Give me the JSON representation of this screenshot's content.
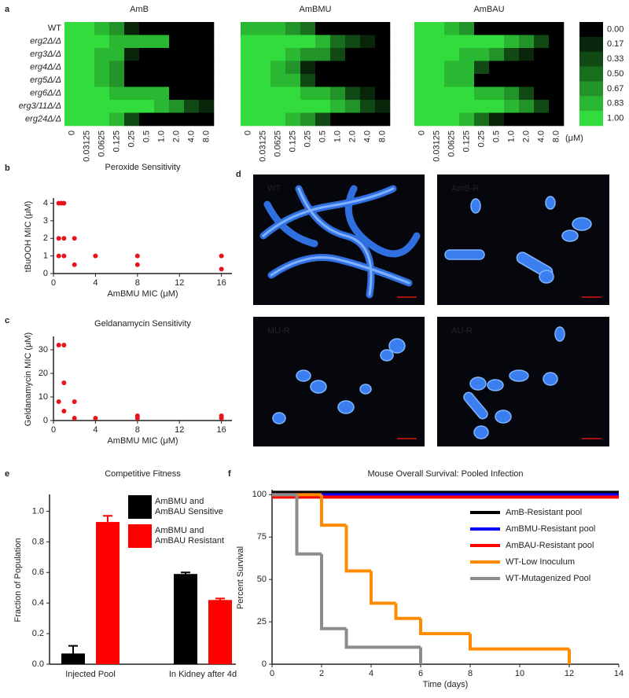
{
  "chart_data": [
    {
      "type": "heatmap",
      "panel": "a",
      "title": "AmB",
      "color": "#32dc3c",
      "rows": [
        "WT",
        "erg2Δ/Δ",
        "erg3Δ/Δ",
        "erg4Δ/Δ",
        "erg5Δ/Δ",
        "erg6Δ/Δ",
        "erg3/11Δ/Δ",
        "erg24Δ/Δ"
      ],
      "categories": [
        "0",
        "0.03125",
        "0.0625",
        "0.125",
        "0.25",
        "0.5",
        "1.0",
        "2.0",
        "4.0",
        "8.0"
      ],
      "values": [
        [
          1,
          1,
          0.83,
          0.67,
          0.17,
          0,
          0,
          0,
          0,
          0
        ],
        [
          1,
          1,
          1,
          0.83,
          0.83,
          0.83,
          0.83,
          0,
          0,
          0
        ],
        [
          1,
          1,
          0.83,
          0.83,
          0.17,
          0,
          0,
          0,
          0,
          0
        ],
        [
          1,
          1,
          0.83,
          0.67,
          0,
          0,
          0,
          0,
          0,
          0
        ],
        [
          1,
          1,
          0.83,
          0.67,
          0,
          0,
          0,
          0,
          0,
          0
        ],
        [
          1,
          1,
          1,
          0.83,
          0.83,
          0.83,
          0.83,
          0,
          0,
          0
        ],
        [
          1,
          1,
          1,
          1,
          1,
          1,
          0.83,
          0.67,
          0.33,
          0.17
        ],
        [
          1,
          1,
          1,
          0.83,
          0.33,
          0,
          0,
          0,
          0,
          0
        ]
      ]
    },
    {
      "type": "heatmap",
      "title": "AmBMU",
      "color": "#32dc3c",
      "categories": [
        "0",
        "0.03125",
        "0.0625",
        "0.125",
        "0.25",
        "0.5",
        "1.0",
        "2.0",
        "4.0",
        "8.0"
      ],
      "values": [
        [
          0.83,
          0.83,
          0.83,
          0.67,
          0.5,
          0,
          0,
          0,
          0,
          0
        ],
        [
          1,
          1,
          1,
          1,
          1,
          0.83,
          0.5,
          0.33,
          0.17,
          0
        ],
        [
          1,
          1,
          1,
          0.83,
          0.67,
          0.67,
          0.33,
          0,
          0,
          0
        ],
        [
          1,
          1,
          0.83,
          0.67,
          0.17,
          0,
          0,
          0,
          0,
          0
        ],
        [
          1,
          1,
          0.83,
          0.83,
          0.33,
          0,
          0,
          0,
          0,
          0
        ],
        [
          1,
          1,
          1,
          1,
          0.83,
          0.83,
          0.67,
          0.33,
          0.17,
          0
        ],
        [
          1,
          1,
          1,
          1,
          1,
          1,
          0.83,
          0.67,
          0.33,
          0.17
        ],
        [
          1,
          1,
          1,
          0.83,
          0.67,
          0.33,
          0,
          0,
          0,
          0
        ]
      ]
    },
    {
      "type": "heatmap",
      "title": "AmBAU",
      "color": "#32dc3c",
      "unit_label": "(μM)",
      "categories": [
        "0",
        "0.03125",
        "0.0625",
        "0.125",
        "0.25",
        "0.5",
        "1.0",
        "2.0",
        "4.0",
        "8.0"
      ],
      "values": [
        [
          1,
          1,
          0.83,
          0.67,
          0,
          0,
          0,
          0,
          0,
          0
        ],
        [
          1,
          1,
          1,
          1,
          1,
          1,
          0.83,
          0.67,
          0.33,
          0
        ],
        [
          1,
          1,
          1,
          0.83,
          0.83,
          0.67,
          0.33,
          0.17,
          0,
          0
        ],
        [
          1,
          1,
          0.83,
          0.83,
          0.33,
          0,
          0,
          0,
          0,
          0
        ],
        [
          1,
          1,
          0.83,
          0.83,
          0,
          0,
          0,
          0,
          0,
          0
        ],
        [
          1,
          1,
          1,
          1,
          0.83,
          0.83,
          0.67,
          0.33,
          0,
          0
        ],
        [
          1,
          1,
          1,
          1,
          1,
          1,
          0.83,
          0.67,
          0.33,
          0
        ],
        [
          1,
          1,
          1,
          0.83,
          0.5,
          0.17,
          0,
          0,
          0,
          0
        ]
      ],
      "colorbar": {
        "ticks": [
          {
            "value": 0,
            "label": "0.00"
          },
          {
            "value": 0.17,
            "label": "0.17"
          },
          {
            "value": 0.33,
            "label": "0.33"
          },
          {
            "value": 0.5,
            "label": "0.50"
          },
          {
            "value": 0.67,
            "label": "0.67"
          },
          {
            "value": 0.83,
            "label": "0.83"
          },
          {
            "value": 1,
            "label": "1.00"
          }
        ]
      }
    },
    {
      "type": "scatter",
      "panel": "b",
      "title": "Peroxide Sensitivity",
      "x_label": "AmBMU MIC (μM)",
      "y_label": "tBuOOH MIC (μM)",
      "color": "#e8141c",
      "x": [
        0.5,
        0.75,
        1,
        0.5,
        1,
        0.5,
        1,
        2,
        2,
        4,
        8,
        8,
        16,
        16
      ],
      "y": [
        4,
        4,
        4,
        2,
        2,
        1,
        1,
        2,
        0.5,
        1,
        1,
        0.5,
        1,
        0.25
      ],
      "xlim": [
        0,
        17
      ],
      "ylim": [
        0,
        4.2
      ],
      "xticks": [
        0,
        4,
        8,
        12,
        16
      ],
      "yticks": [
        0,
        1,
        2,
        3,
        4
      ]
    },
    {
      "type": "scatter",
      "panel": "c",
      "title": "Geldanamycin Sensitivity",
      "x_label": "AmBMU MIC (μM)",
      "y_label": "Geldanamycin MIC (μM)",
      "color": "#e8141c",
      "x": [
        0.5,
        1,
        0.5,
        1,
        1,
        2,
        2,
        4,
        8,
        8,
        16,
        16
      ],
      "y": [
        32,
        32,
        8,
        16,
        4,
        8,
        1,
        1,
        1,
        2,
        1,
        2
      ],
      "xlim": [
        0,
        17
      ],
      "ylim": [
        0,
        35
      ],
      "xticks": [
        0,
        4,
        8,
        12,
        16
      ],
      "yticks": [
        0,
        10,
        20,
        30
      ]
    },
    {
      "type": "micrograph",
      "panel": "d",
      "labels": [
        "WT",
        "AmB-R",
        "MU-R",
        "AU-R"
      ]
    },
    {
      "type": "bar",
      "panel": "e",
      "title": "Competitive Fitness",
      "y_label": "Fraction of Population",
      "categories": [
        "Injected Pool",
        "In Kidney after 4d"
      ],
      "series": [
        {
          "name": "AmBMU and AmBAU Sensitive",
          "color": "#000000",
          "values": [
            0.07,
            0.59
          ],
          "errors": [
            0.05,
            0.01
          ]
        },
        {
          "name": "AmBMU and AmBAU Resistant",
          "color": "#ff0000",
          "values": [
            0.93,
            0.42
          ],
          "errors": [
            0.04,
            0.01
          ]
        }
      ],
      "ylim": [
        0,
        1.1
      ],
      "yticks": [
        {
          "value": 0,
          "label": "0.0"
        },
        {
          "value": 0.2,
          "label": "0.2"
        },
        {
          "value": 0.4,
          "label": "0.4"
        },
        {
          "value": 0.6,
          "label": "0.6"
        },
        {
          "value": 0.8,
          "label": "0.8"
        },
        {
          "value": 1,
          "label": "1.0"
        }
      ]
    },
    {
      "type": "step",
      "panel": "f",
      "title": "Mouse Overall Survival: Pooled Infection",
      "x_label": "Time (days)",
      "y_label": "Percent Survival",
      "series": [
        {
          "name": "AmB-Resistant pool",
          "color": "#000000",
          "x": [
            0,
            14
          ],
          "values": [
            100,
            100
          ]
        },
        {
          "name": "AmBMU-Resistant pool",
          "color": "#0000ff",
          "x": [
            0,
            14
          ],
          "values": [
            100,
            100
          ]
        },
        {
          "name": "AmBAU-Resistant pool",
          "color": "#ff0000",
          "x": [
            0,
            14
          ],
          "values": [
            100,
            100
          ]
        },
        {
          "name": "WT-Low Inoculum",
          "color": "#ff8c00",
          "x": [
            0,
            2,
            3,
            4,
            5,
            6,
            8,
            12
          ],
          "values": [
            100,
            82,
            55,
            36,
            27,
            18,
            9,
            0
          ]
        },
        {
          "name": "WT-Mutagenized Pool",
          "color": "#8c8c8c",
          "x": [
            0,
            1,
            2,
            3,
            6
          ],
          "values": [
            100,
            65,
            21,
            10,
            0
          ]
        }
      ],
      "xlim": [
        0,
        14
      ],
      "ylim": [
        0,
        102
      ],
      "xticks": [
        0,
        2,
        4,
        6,
        8,
        10,
        12,
        14
      ],
      "yticks": [
        0,
        25,
        50,
        75,
        100
      ]
    }
  ]
}
